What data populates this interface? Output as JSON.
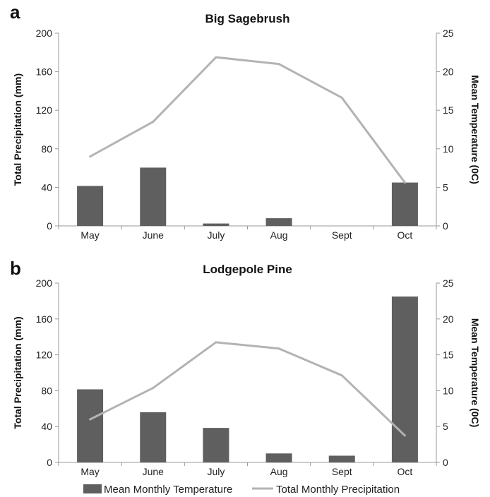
{
  "chart_data": [
    {
      "panel": "a",
      "type": "bar",
      "title": "Big Sagebrush",
      "categories": [
        "May",
        "June",
        "July",
        "Aug",
        "Sept",
        "Oct"
      ],
      "ylabel": "Total Precipitation (mm)",
      "y2label": "Mean Temperature (0C)",
      "ylim": [
        0,
        200
      ],
      "y2lim": [
        0,
        25
      ],
      "yticks": [
        0,
        40,
        80,
        120,
        160,
        200
      ],
      "y2ticks": [
        0,
        5,
        10,
        15,
        20,
        25
      ],
      "series": [
        {
          "name": "Mean Monthly Temperature",
          "kind": "bar",
          "color": "#5f5f5f",
          "values": [
            41.5,
            60.5,
            2.5,
            8,
            0,
            45
          ]
        },
        {
          "name": "Total Monthly Precipitation",
          "kind": "line",
          "color": "#b3b3b3",
          "values": [
            72,
            108,
            175,
            168,
            133,
            45
          ]
        }
      ]
    },
    {
      "panel": "b",
      "type": "bar",
      "title": "Lodgepole Pine",
      "categories": [
        "May",
        "June",
        "July",
        "Aug",
        "Sept",
        "Oct"
      ],
      "ylabel": "Total Precipitation (mm)",
      "y2label": "Mean Temperature (0C)",
      "ylim": [
        0,
        200
      ],
      "y2lim": [
        0,
        25
      ],
      "yticks": [
        0,
        40,
        80,
        120,
        160,
        200
      ],
      "y2ticks": [
        0,
        5,
        10,
        15,
        20,
        25
      ],
      "series": [
        {
          "name": "Mean Monthly Temperature",
          "kind": "bar",
          "color": "#5f5f5f",
          "values": [
            81.5,
            56,
            38.5,
            10,
            7.5,
            185
          ]
        },
        {
          "name": "Total Monthly Precipitation",
          "kind": "line",
          "color": "#b3b3b3",
          "values": [
            48,
            83,
            134,
            127,
            97,
            30
          ]
        }
      ]
    }
  ],
  "legend": [
    {
      "label": "Mean Monthly Temperature",
      "type": "bar",
      "color": "#5f5f5f"
    },
    {
      "label": "Total Monthly Precipitation",
      "type": "line",
      "color": "#b3b3b3"
    }
  ]
}
